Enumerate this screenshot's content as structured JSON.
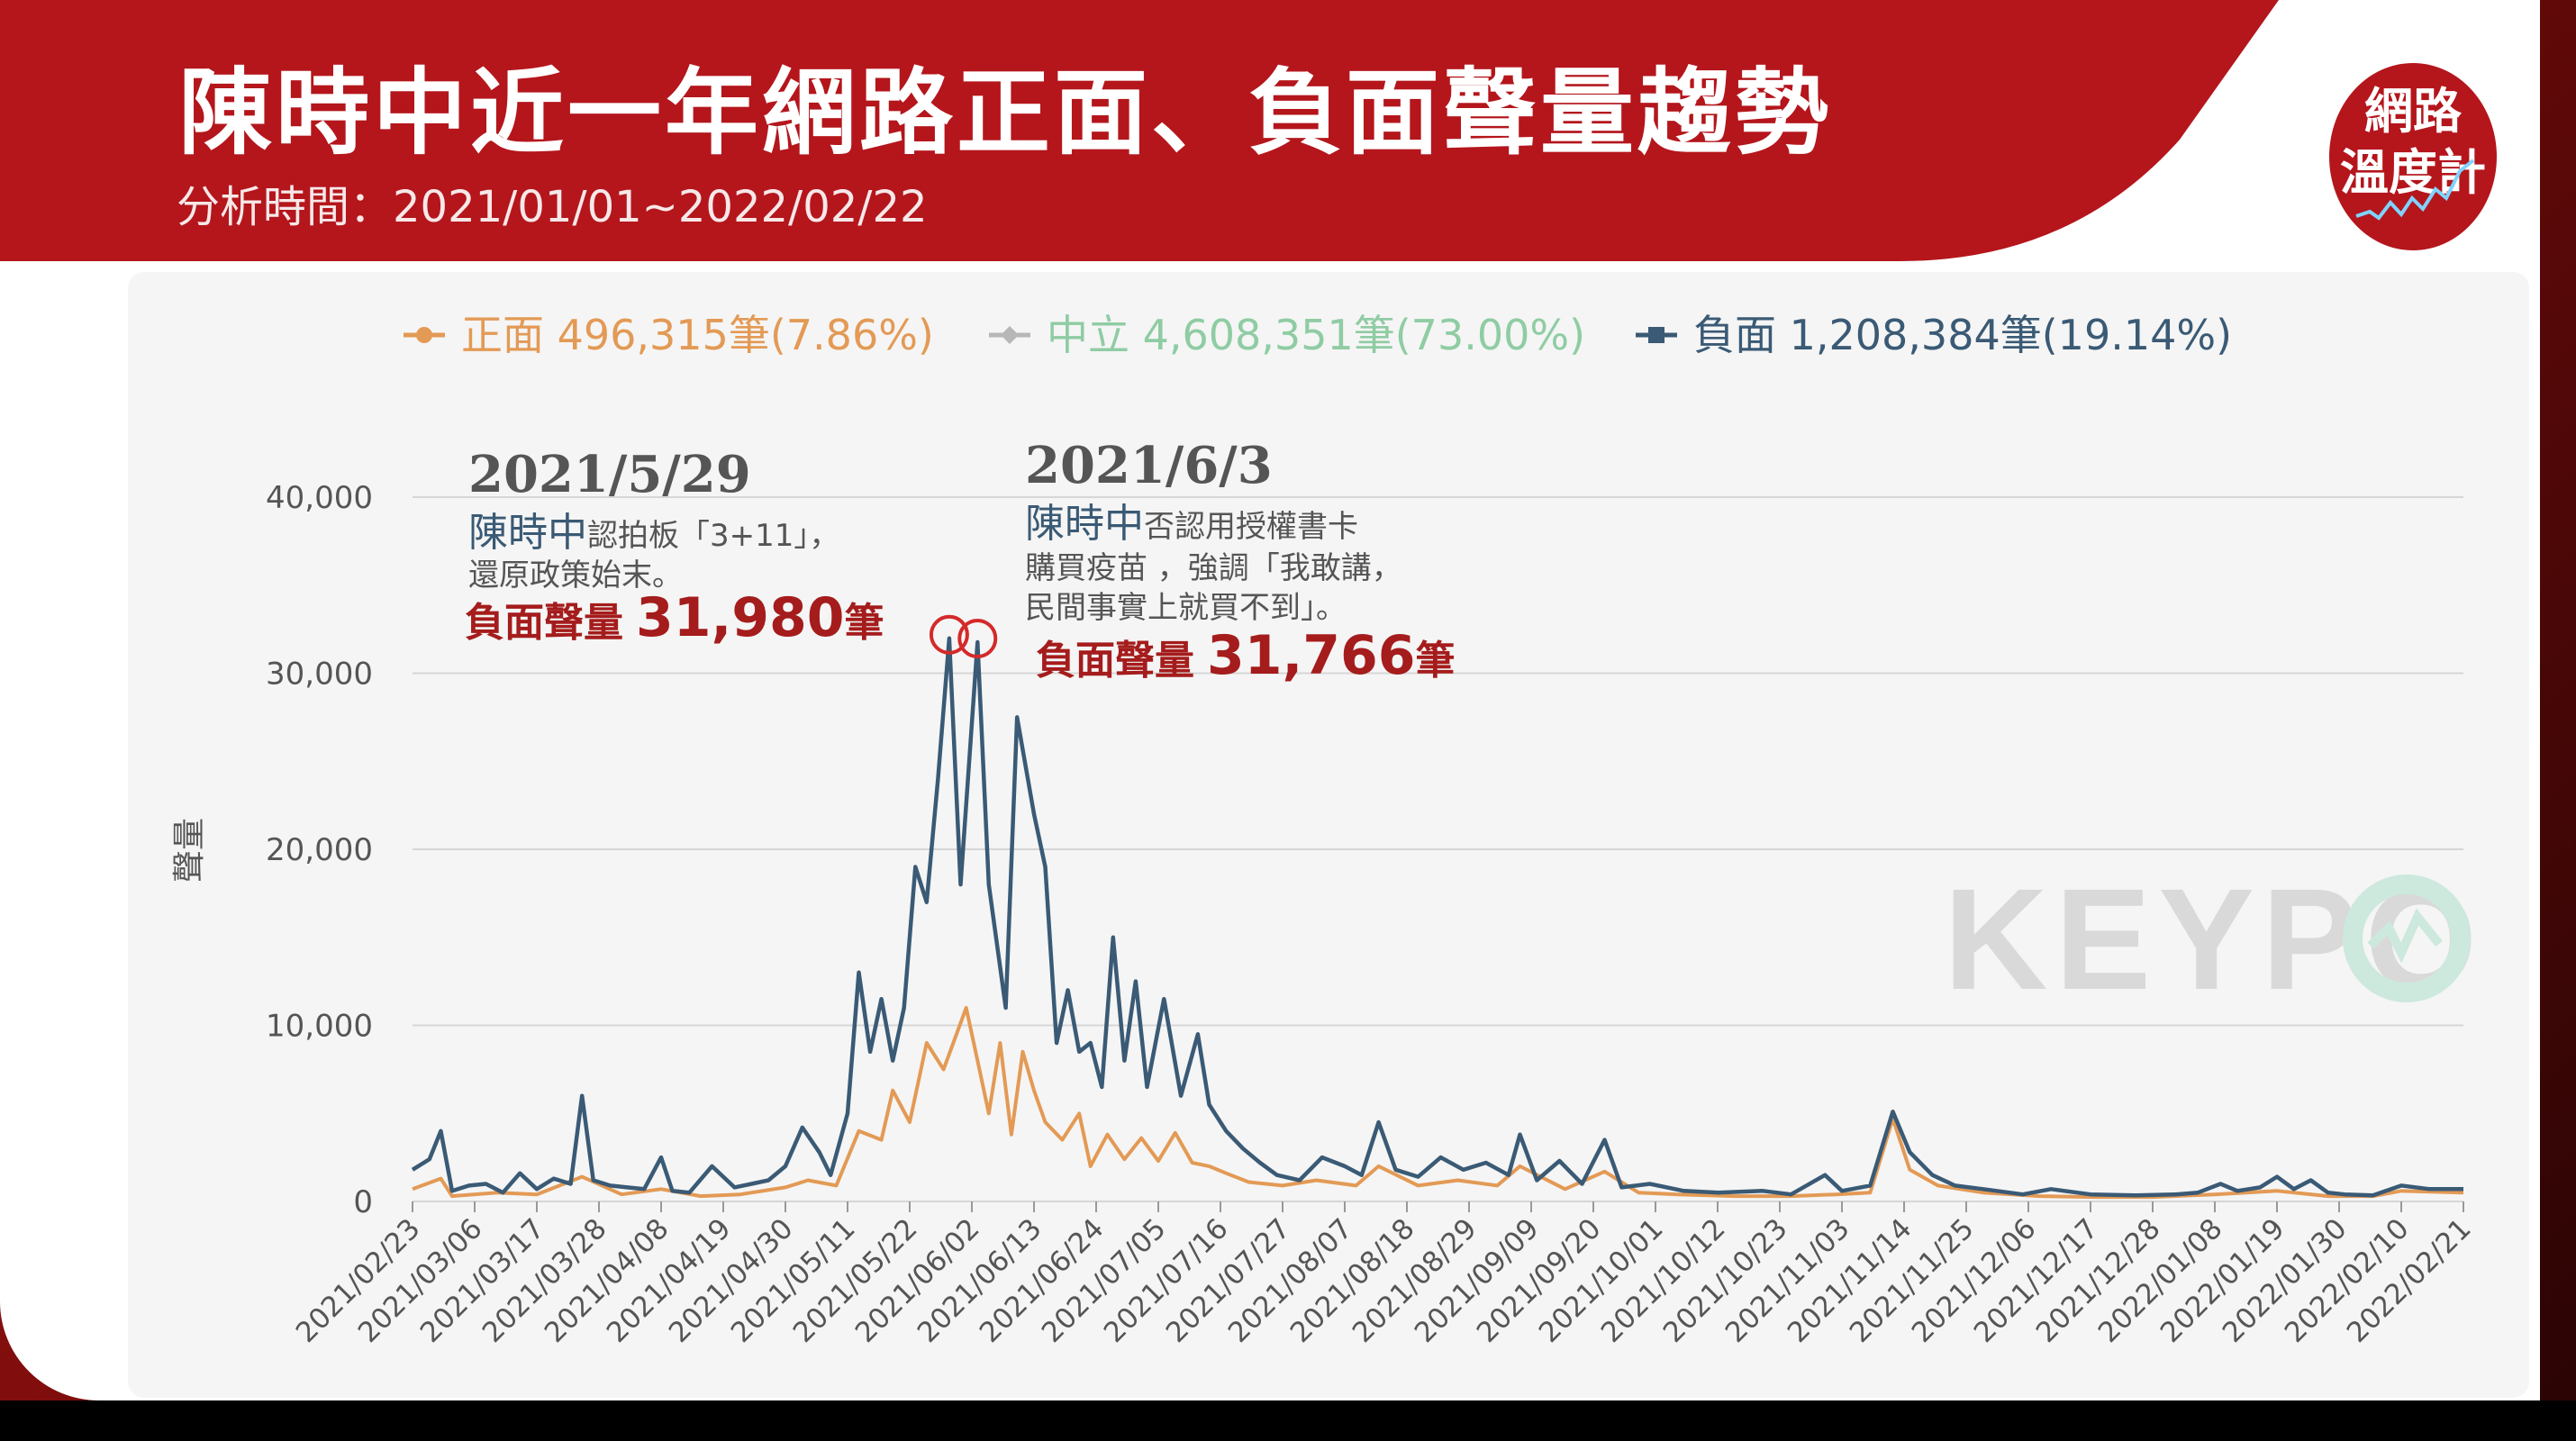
{
  "header": {
    "title": "陳時中近一年網路正面、負面聲量趨勢",
    "subtitle": "分析時間：2021/01/01~2022/02/22"
  },
  "badge": {
    "line1": "網路",
    "line2": "溫度計"
  },
  "watermark": "KEYPO",
  "colors": {
    "banner": "#b4161c",
    "positive": "#e39a55",
    "neutral": "#b7b7b7",
    "negative": "#3a5a75",
    "highlight": "#a51c1c"
  },
  "legend": [
    {
      "label": "正面 496,315筆(7.86%)",
      "color": "#e39a55",
      "text_color": "#e39a55",
      "icon": "dot-marker-icon"
    },
    {
      "label": "中立 4,608,351筆(73.00%)",
      "color": "#b7b7b7",
      "text_color": "#8fcca3",
      "icon": "diamond-marker-icon"
    },
    {
      "label": "負面 1,208,384筆(19.14%)",
      "color": "#3a5a75",
      "text_color": "#3a5a75",
      "icon": "square-marker-icon"
    }
  ],
  "annotations": [
    {
      "date": "2021/5/29",
      "name": "陳時中",
      "text_lines": [
        "認拍板「3+11」，",
        "還原政策始末。"
      ],
      "volume_label": "負面聲量",
      "volume_value": "31,980",
      "volume_unit": "筆"
    },
    {
      "date": "2021/6/3",
      "name": "陳時中",
      "text_lines": [
        "否認用授權書卡",
        "購買疫苗 ，強調「我敢講，",
        "民間事實上就買不到」。"
      ],
      "volume_label": "負面聲量",
      "volume_value": "31,766",
      "volume_unit": "筆"
    }
  ],
  "chart_data": {
    "type": "line",
    "ylabel": "聲量",
    "ylim": [
      0,
      40000
    ],
    "yticks": [
      "0",
      "10,000",
      "20,000",
      "30,000",
      "40,000"
    ],
    "xticks": [
      "2021/02/23",
      "2021/03/06",
      "2021/03/17",
      "2021/03/28",
      "2021/04/08",
      "2021/04/19",
      "2021/04/30",
      "2021/05/11",
      "2021/05/22",
      "2021/06/02",
      "2021/06/13",
      "2021/06/24",
      "2021/07/05",
      "2021/07/16",
      "2021/07/27",
      "2021/08/07",
      "2021/08/18",
      "2021/08/29",
      "2021/09/09",
      "2021/09/20",
      "2021/10/01",
      "2021/10/12",
      "2021/10/23",
      "2021/11/03",
      "2021/11/14",
      "2021/11/25",
      "2021/12/06",
      "2021/12/17",
      "2021/12/28",
      "2022/01/08",
      "2022/01/19",
      "2022/01/30",
      "2022/02/10",
      "2022/02/21"
    ],
    "x_start": "2021/02/23",
    "x_end": "2022/02/21",
    "grid": true,
    "legend_position": "top",
    "series": [
      {
        "name": "負面",
        "points": [
          [
            "2021/02/23",
            1800
          ],
          [
            "2021/02/26",
            2400
          ],
          [
            "2021/02/28",
            4000
          ],
          [
            "2021/03/02",
            600
          ],
          [
            "2021/03/05",
            900
          ],
          [
            "2021/03/08",
            1000
          ],
          [
            "2021/03/11",
            500
          ],
          [
            "2021/03/14",
            1600
          ],
          [
            "2021/03/17",
            700
          ],
          [
            "2021/03/20",
            1300
          ],
          [
            "2021/03/23",
            1000
          ],
          [
            "2021/03/25",
            6000
          ],
          [
            "2021/03/27",
            1200
          ],
          [
            "2021/03/30",
            900
          ],
          [
            "2021/04/02",
            800
          ],
          [
            "2021/04/05",
            700
          ],
          [
            "2021/04/08",
            2500
          ],
          [
            "2021/04/10",
            600
          ],
          [
            "2021/04/13",
            500
          ],
          [
            "2021/04/17",
            2000
          ],
          [
            "2021/04/21",
            800
          ],
          [
            "2021/04/24",
            1000
          ],
          [
            "2021/04/27",
            1200
          ],
          [
            "2021/04/30",
            2000
          ],
          [
            "2021/05/03",
            4200
          ],
          [
            "2021/05/06",
            2800
          ],
          [
            "2021/05/08",
            1500
          ],
          [
            "2021/05/11",
            5000
          ],
          [
            "2021/05/13",
            13000
          ],
          [
            "2021/05/15",
            8500
          ],
          [
            "2021/05/17",
            11500
          ],
          [
            "2021/05/19",
            8000
          ],
          [
            "2021/05/21",
            11000
          ],
          [
            "2021/05/23",
            19000
          ],
          [
            "2021/05/25",
            17000
          ],
          [
            "2021/05/27",
            24000
          ],
          [
            "2021/05/29",
            31980
          ],
          [
            "2021/05/31",
            18000
          ],
          [
            "2021/06/03",
            31766
          ],
          [
            "2021/06/05",
            18000
          ],
          [
            "2021/06/08",
            11000
          ],
          [
            "2021/06/10",
            27500
          ],
          [
            "2021/06/13",
            22000
          ],
          [
            "2021/06/15",
            19000
          ],
          [
            "2021/06/17",
            9000
          ],
          [
            "2021/06/19",
            12000
          ],
          [
            "2021/06/21",
            8500
          ],
          [
            "2021/06/23",
            9000
          ],
          [
            "2021/06/25",
            6500
          ],
          [
            "2021/06/27",
            15000
          ],
          [
            "2021/06/29",
            8000
          ],
          [
            "2021/07/01",
            12500
          ],
          [
            "2021/07/03",
            6500
          ],
          [
            "2021/07/06",
            11500
          ],
          [
            "2021/07/09",
            6000
          ],
          [
            "2021/07/12",
            9500
          ],
          [
            "2021/07/14",
            5500
          ],
          [
            "2021/07/17",
            4000
          ],
          [
            "2021/07/20",
            3000
          ],
          [
            "2021/07/23",
            2200
          ],
          [
            "2021/07/26",
            1500
          ],
          [
            "2021/07/30",
            1200
          ],
          [
            "2021/08/03",
            2500
          ],
          [
            "2021/08/07",
            2000
          ],
          [
            "2021/08/10",
            1500
          ],
          [
            "2021/08/13",
            4500
          ],
          [
            "2021/08/16",
            1800
          ],
          [
            "2021/08/20",
            1400
          ],
          [
            "2021/08/24",
            2500
          ],
          [
            "2021/08/28",
            1800
          ],
          [
            "2021/09/01",
            2200
          ],
          [
            "2021/09/05",
            1500
          ],
          [
            "2021/09/07",
            3800
          ],
          [
            "2021/09/10",
            1200
          ],
          [
            "2021/09/14",
            2300
          ],
          [
            "2021/09/18",
            1000
          ],
          [
            "2021/09/22",
            3500
          ],
          [
            "2021/09/25",
            800
          ],
          [
            "2021/09/30",
            1000
          ],
          [
            "2021/10/06",
            600
          ],
          [
            "2021/10/12",
            500
          ],
          [
            "2021/10/20",
            600
          ],
          [
            "2021/10/25",
            400
          ],
          [
            "2021/10/31",
            1500
          ],
          [
            "2021/11/03",
            600
          ],
          [
            "2021/11/08",
            900
          ],
          [
            "2021/11/12",
            5100
          ],
          [
            "2021/11/15",
            2800
          ],
          [
            "2021/11/19",
            1500
          ],
          [
            "2021/11/23",
            900
          ],
          [
            "2021/11/28",
            700
          ],
          [
            "2021/12/05",
            400
          ],
          [
            "2021/12/10",
            700
          ],
          [
            "2021/12/17",
            400
          ],
          [
            "2021/12/25",
            350
          ],
          [
            "2022/01/01",
            400
          ],
          [
            "2022/01/05",
            500
          ],
          [
            "2022/01/09",
            1000
          ],
          [
            "2022/01/12",
            600
          ],
          [
            "2022/01/16",
            800
          ],
          [
            "2022/01/19",
            1400
          ],
          [
            "2022/01/22",
            700
          ],
          [
            "2022/01/25",
            1200
          ],
          [
            "2022/01/28",
            500
          ],
          [
            "2022/01/31",
            400
          ],
          [
            "2022/02/05",
            350
          ],
          [
            "2022/02/10",
            900
          ],
          [
            "2022/02/15",
            700
          ],
          [
            "2022/02/21",
            700
          ]
        ]
      },
      {
        "name": "正面",
        "points": [
          [
            "2021/02/23",
            700
          ],
          [
            "2021/02/28",
            1300
          ],
          [
            "2021/03/02",
            300
          ],
          [
            "2021/03/10",
            500
          ],
          [
            "2021/03/17",
            400
          ],
          [
            "2021/03/25",
            1400
          ],
          [
            "2021/04/01",
            400
          ],
          [
            "2021/04/08",
            700
          ],
          [
            "2021/04/15",
            300
          ],
          [
            "2021/04/22",
            400
          ],
          [
            "2021/04/30",
            800
          ],
          [
            "2021/05/04",
            1200
          ],
          [
            "2021/05/09",
            900
          ],
          [
            "2021/05/13",
            4000
          ],
          [
            "2021/05/17",
            3500
          ],
          [
            "2021/05/19",
            6300
          ],
          [
            "2021/05/22",
            4500
          ],
          [
            "2021/05/25",
            9000
          ],
          [
            "2021/05/28",
            7500
          ],
          [
            "2021/06/01",
            11000
          ],
          [
            "2021/06/03",
            8000
          ],
          [
            "2021/06/05",
            5000
          ],
          [
            "2021/06/07",
            9000
          ],
          [
            "2021/06/09",
            3800
          ],
          [
            "2021/06/11",
            8500
          ],
          [
            "2021/06/13",
            6300
          ],
          [
            "2021/06/15",
            4500
          ],
          [
            "2021/06/18",
            3500
          ],
          [
            "2021/06/21",
            5000
          ],
          [
            "2021/06/23",
            2000
          ],
          [
            "2021/06/26",
            3800
          ],
          [
            "2021/06/29",
            2400
          ],
          [
            "2021/07/02",
            3600
          ],
          [
            "2021/07/05",
            2300
          ],
          [
            "2021/07/08",
            3900
          ],
          [
            "2021/07/11",
            2200
          ],
          [
            "2021/07/14",
            2000
          ],
          [
            "2021/07/17",
            1600
          ],
          [
            "2021/07/21",
            1100
          ],
          [
            "2021/07/27",
            900
          ],
          [
            "2021/08/02",
            1200
          ],
          [
            "2021/08/09",
            900
          ],
          [
            "2021/08/13",
            2000
          ],
          [
            "2021/08/20",
            900
          ],
          [
            "2021/08/27",
            1200
          ],
          [
            "2021/09/03",
            900
          ],
          [
            "2021/09/07",
            2000
          ],
          [
            "2021/09/15",
            700
          ],
          [
            "2021/09/22",
            1700
          ],
          [
            "2021/09/28",
            500
          ],
          [
            "2021/10/05",
            400
          ],
          [
            "2021/10/15",
            300
          ],
          [
            "2021/10/25",
            300
          ],
          [
            "2021/11/02",
            400
          ],
          [
            "2021/11/08",
            500
          ],
          [
            "2021/11/12",
            4700
          ],
          [
            "2021/11/15",
            1800
          ],
          [
            "2021/11/20",
            900
          ],
          [
            "2021/11/28",
            500
          ],
          [
            "2021/12/08",
            300
          ],
          [
            "2021/12/18",
            250
          ],
          [
            "2021/12/28",
            250
          ],
          [
            "2022/01/08",
            400
          ],
          [
            "2022/01/19",
            600
          ],
          [
            "2022/01/28",
            300
          ],
          [
            "2022/02/05",
            300
          ],
          [
            "2022/02/10",
            600
          ],
          [
            "2022/02/21",
            500
          ]
        ]
      }
    ]
  }
}
